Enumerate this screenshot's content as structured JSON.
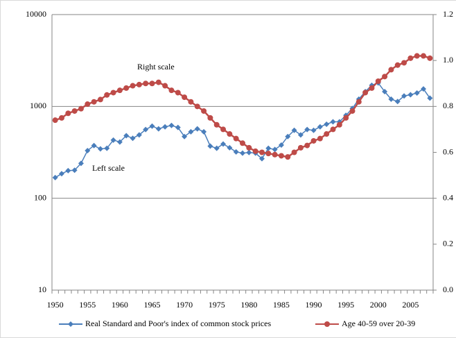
{
  "chart_data": {
    "type": "line",
    "categories": [
      "1950",
      null,
      null,
      null,
      null,
      "1955",
      null,
      null,
      null,
      null,
      "1960",
      null,
      null,
      null,
      null,
      "1965",
      null,
      null,
      null,
      null,
      "1970",
      null,
      null,
      null,
      null,
      "1975",
      null,
      null,
      null,
      null,
      "1980",
      null,
      null,
      null,
      null,
      "1985",
      null,
      null,
      null,
      null,
      "1990",
      null,
      null,
      null,
      null,
      "1995",
      null,
      null,
      null,
      null,
      "2000",
      null,
      null,
      null,
      null,
      "2005",
      null,
      null,
      null
    ],
    "series": [
      {
        "name": "Real Standard and Poor's index of common stock prices",
        "color": "#4a7ebb",
        "marker": "diamond",
        "values": [
          168,
          185,
          200,
          202,
          240,
          330,
          375,
          345,
          350,
          430,
          410,
          480,
          450,
          490,
          560,
          610,
          570,
          600,
          620,
          590,
          470,
          530,
          570,
          530,
          370,
          350,
          390,
          355,
          320,
          310,
          315,
          310,
          270,
          350,
          340,
          380,
          470,
          550,
          490,
          560,
          550,
          600,
          640,
          680,
          680,
          800,
          950,
          1200,
          1450,
          1700,
          1800,
          1450,
          1200,
          1130,
          1300,
          1340,
          1400,
          1550,
          1230
        ]
      },
      {
        "name": "Age 40-59 over 20-39",
        "color": "#be4b48",
        "marker": "circle",
        "axis": "y2",
        "values": [
          0.74,
          0.75,
          0.77,
          0.78,
          0.79,
          0.81,
          0.82,
          0.83,
          0.85,
          0.86,
          0.87,
          0.88,
          0.89,
          0.895,
          0.9,
          0.9,
          0.905,
          0.89,
          0.87,
          0.86,
          0.84,
          0.82,
          0.8,
          0.78,
          0.75,
          0.72,
          0.7,
          0.68,
          0.66,
          0.64,
          0.62,
          0.605,
          0.6,
          0.595,
          0.59,
          0.585,
          0.58,
          0.6,
          0.62,
          0.63,
          0.65,
          0.66,
          0.68,
          0.7,
          0.72,
          0.75,
          0.78,
          0.82,
          0.86,
          0.88,
          0.91,
          0.93,
          0.96,
          0.98,
          0.99,
          1.01,
          1.02,
          1.02,
          1.01
        ]
      }
    ],
    "ylim": [
      10,
      10000
    ],
    "yscale": "log",
    "yticks": [
      10,
      100,
      1000,
      10000
    ],
    "y2lim": [
      0,
      1.2
    ],
    "y2ticks": [
      {
        "value": 0,
        "label": "0.0"
      },
      {
        "value": 0.2,
        "label": "0.2"
      },
      {
        "value": 0.4,
        "label": "0.4"
      },
      {
        "value": 0.6,
        "label": "0.6"
      },
      {
        "value": 0.8,
        "label": "0.8"
      },
      {
        "value": 1,
        "label": "1.0"
      },
      {
        "value": 1.2,
        "label": "1.2"
      }
    ],
    "grid": true,
    "legend": "bottom",
    "annotations": [
      "Right scale",
      "Left scale"
    ]
  }
}
